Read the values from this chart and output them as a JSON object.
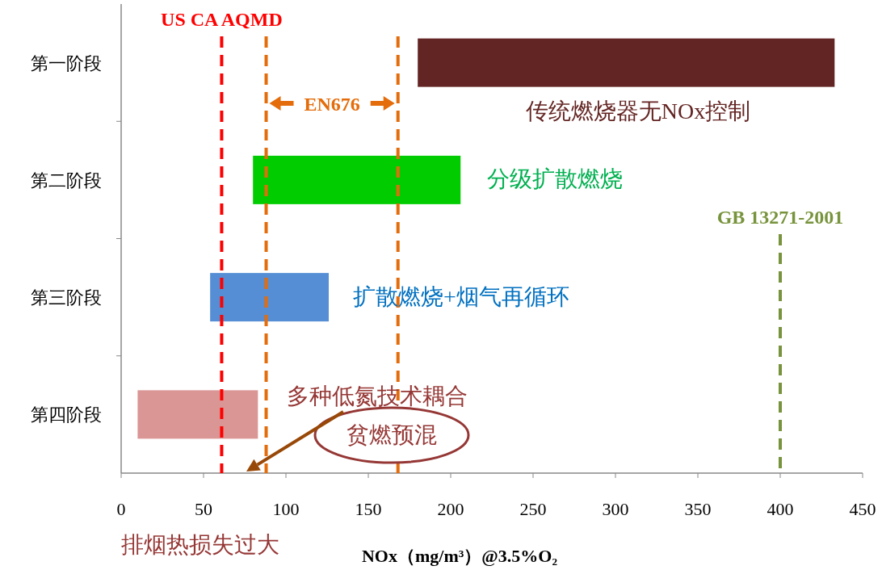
{
  "chart_data": {
    "type": "bar",
    "orientation": "horizontal",
    "xlabel": "NOx（mg/m³）@3.5%O₂",
    "categories": [
      "第一阶段",
      "第二阶段",
      "第三阶段",
      "第四阶段"
    ],
    "base": [
      180,
      80,
      54,
      10
    ],
    "values": [
      253,
      126,
      72,
      73
    ],
    "colors": [
      "#632523",
      "#00cc00",
      "#558ed5",
      "#d99694"
    ],
    "xlim": [
      0,
      450
    ],
    "xticks": [
      0,
      50,
      100,
      150,
      200,
      250,
      300,
      350,
      400,
      450
    ],
    "ref_lines": [
      {
        "axis": "x",
        "value": 61,
        "label": "US CA AQMD",
        "color": "#ff0000",
        "line_style": "dashed"
      },
      {
        "axis": "x",
        "value": 88,
        "color": "#e46c0a",
        "line_style": "dashed"
      },
      {
        "axis": "x",
        "value": 168,
        "color": "#e46c0a",
        "line_style": "dashed"
      },
      {
        "axis": "x",
        "value": 400,
        "label": "GB 13271-2001",
        "color": "#77933c",
        "line_style": "dashed"
      }
    ],
    "annotations": [
      "EN676",
      "传统燃烧器无NOx控制",
      "分级扩散燃烧",
      "扩散燃烧+烟气再循环",
      "多种低氮技术耦合",
      "贫燃预混",
      "排烟热损失过大"
    ]
  }
}
